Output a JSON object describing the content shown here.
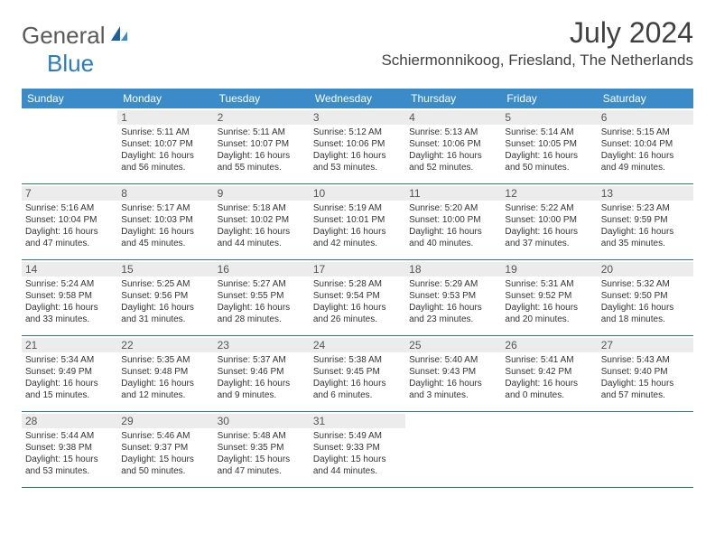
{
  "logo": {
    "text1": "General",
    "text2": "Blue"
  },
  "title": "July 2024",
  "location": "Schiermonnikoog, Friesland, The Netherlands",
  "weekdays": [
    "Sunday",
    "Monday",
    "Tuesday",
    "Wednesday",
    "Thursday",
    "Friday",
    "Saturday"
  ],
  "colors": {
    "header_bg": "#3b8bc8",
    "header_text": "#ffffff",
    "daynum_bg": "#ececec",
    "border": "#2f6fa3",
    "text": "#333333",
    "logo_gray": "#5a5a5a",
    "logo_blue": "#2b7bbf"
  },
  "cells": [
    {
      "day": "",
      "sunrise": "",
      "sunset": "",
      "daylight": ""
    },
    {
      "day": "1",
      "sunrise": "Sunrise: 5:11 AM",
      "sunset": "Sunset: 10:07 PM",
      "daylight": "Daylight: 16 hours and 56 minutes."
    },
    {
      "day": "2",
      "sunrise": "Sunrise: 5:11 AM",
      "sunset": "Sunset: 10:07 PM",
      "daylight": "Daylight: 16 hours and 55 minutes."
    },
    {
      "day": "3",
      "sunrise": "Sunrise: 5:12 AM",
      "sunset": "Sunset: 10:06 PM",
      "daylight": "Daylight: 16 hours and 53 minutes."
    },
    {
      "day": "4",
      "sunrise": "Sunrise: 5:13 AM",
      "sunset": "Sunset: 10:06 PM",
      "daylight": "Daylight: 16 hours and 52 minutes."
    },
    {
      "day": "5",
      "sunrise": "Sunrise: 5:14 AM",
      "sunset": "Sunset: 10:05 PM",
      "daylight": "Daylight: 16 hours and 50 minutes."
    },
    {
      "day": "6",
      "sunrise": "Sunrise: 5:15 AM",
      "sunset": "Sunset: 10:04 PM",
      "daylight": "Daylight: 16 hours and 49 minutes."
    },
    {
      "day": "7",
      "sunrise": "Sunrise: 5:16 AM",
      "sunset": "Sunset: 10:04 PM",
      "daylight": "Daylight: 16 hours and 47 minutes."
    },
    {
      "day": "8",
      "sunrise": "Sunrise: 5:17 AM",
      "sunset": "Sunset: 10:03 PM",
      "daylight": "Daylight: 16 hours and 45 minutes."
    },
    {
      "day": "9",
      "sunrise": "Sunrise: 5:18 AM",
      "sunset": "Sunset: 10:02 PM",
      "daylight": "Daylight: 16 hours and 44 minutes."
    },
    {
      "day": "10",
      "sunrise": "Sunrise: 5:19 AM",
      "sunset": "Sunset: 10:01 PM",
      "daylight": "Daylight: 16 hours and 42 minutes."
    },
    {
      "day": "11",
      "sunrise": "Sunrise: 5:20 AM",
      "sunset": "Sunset: 10:00 PM",
      "daylight": "Daylight: 16 hours and 40 minutes."
    },
    {
      "day": "12",
      "sunrise": "Sunrise: 5:22 AM",
      "sunset": "Sunset: 10:00 PM",
      "daylight": "Daylight: 16 hours and 37 minutes."
    },
    {
      "day": "13",
      "sunrise": "Sunrise: 5:23 AM",
      "sunset": "Sunset: 9:59 PM",
      "daylight": "Daylight: 16 hours and 35 minutes."
    },
    {
      "day": "14",
      "sunrise": "Sunrise: 5:24 AM",
      "sunset": "Sunset: 9:58 PM",
      "daylight": "Daylight: 16 hours and 33 minutes."
    },
    {
      "day": "15",
      "sunrise": "Sunrise: 5:25 AM",
      "sunset": "Sunset: 9:56 PM",
      "daylight": "Daylight: 16 hours and 31 minutes."
    },
    {
      "day": "16",
      "sunrise": "Sunrise: 5:27 AM",
      "sunset": "Sunset: 9:55 PM",
      "daylight": "Daylight: 16 hours and 28 minutes."
    },
    {
      "day": "17",
      "sunrise": "Sunrise: 5:28 AM",
      "sunset": "Sunset: 9:54 PM",
      "daylight": "Daylight: 16 hours and 26 minutes."
    },
    {
      "day": "18",
      "sunrise": "Sunrise: 5:29 AM",
      "sunset": "Sunset: 9:53 PM",
      "daylight": "Daylight: 16 hours and 23 minutes."
    },
    {
      "day": "19",
      "sunrise": "Sunrise: 5:31 AM",
      "sunset": "Sunset: 9:52 PM",
      "daylight": "Daylight: 16 hours and 20 minutes."
    },
    {
      "day": "20",
      "sunrise": "Sunrise: 5:32 AM",
      "sunset": "Sunset: 9:50 PM",
      "daylight": "Daylight: 16 hours and 18 minutes."
    },
    {
      "day": "21",
      "sunrise": "Sunrise: 5:34 AM",
      "sunset": "Sunset: 9:49 PM",
      "daylight": "Daylight: 16 hours and 15 minutes."
    },
    {
      "day": "22",
      "sunrise": "Sunrise: 5:35 AM",
      "sunset": "Sunset: 9:48 PM",
      "daylight": "Daylight: 16 hours and 12 minutes."
    },
    {
      "day": "23",
      "sunrise": "Sunrise: 5:37 AM",
      "sunset": "Sunset: 9:46 PM",
      "daylight": "Daylight: 16 hours and 9 minutes."
    },
    {
      "day": "24",
      "sunrise": "Sunrise: 5:38 AM",
      "sunset": "Sunset: 9:45 PM",
      "daylight": "Daylight: 16 hours and 6 minutes."
    },
    {
      "day": "25",
      "sunrise": "Sunrise: 5:40 AM",
      "sunset": "Sunset: 9:43 PM",
      "daylight": "Daylight: 16 hours and 3 minutes."
    },
    {
      "day": "26",
      "sunrise": "Sunrise: 5:41 AM",
      "sunset": "Sunset: 9:42 PM",
      "daylight": "Daylight: 16 hours and 0 minutes."
    },
    {
      "day": "27",
      "sunrise": "Sunrise: 5:43 AM",
      "sunset": "Sunset: 9:40 PM",
      "daylight": "Daylight: 15 hours and 57 minutes."
    },
    {
      "day": "28",
      "sunrise": "Sunrise: 5:44 AM",
      "sunset": "Sunset: 9:38 PM",
      "daylight": "Daylight: 15 hours and 53 minutes."
    },
    {
      "day": "29",
      "sunrise": "Sunrise: 5:46 AM",
      "sunset": "Sunset: 9:37 PM",
      "daylight": "Daylight: 15 hours and 50 minutes."
    },
    {
      "day": "30",
      "sunrise": "Sunrise: 5:48 AM",
      "sunset": "Sunset: 9:35 PM",
      "daylight": "Daylight: 15 hours and 47 minutes."
    },
    {
      "day": "31",
      "sunrise": "Sunrise: 5:49 AM",
      "sunset": "Sunset: 9:33 PM",
      "daylight": "Daylight: 15 hours and 44 minutes."
    },
    {
      "day": "",
      "sunrise": "",
      "sunset": "",
      "daylight": ""
    },
    {
      "day": "",
      "sunrise": "",
      "sunset": "",
      "daylight": ""
    },
    {
      "day": "",
      "sunrise": "",
      "sunset": "",
      "daylight": ""
    }
  ]
}
